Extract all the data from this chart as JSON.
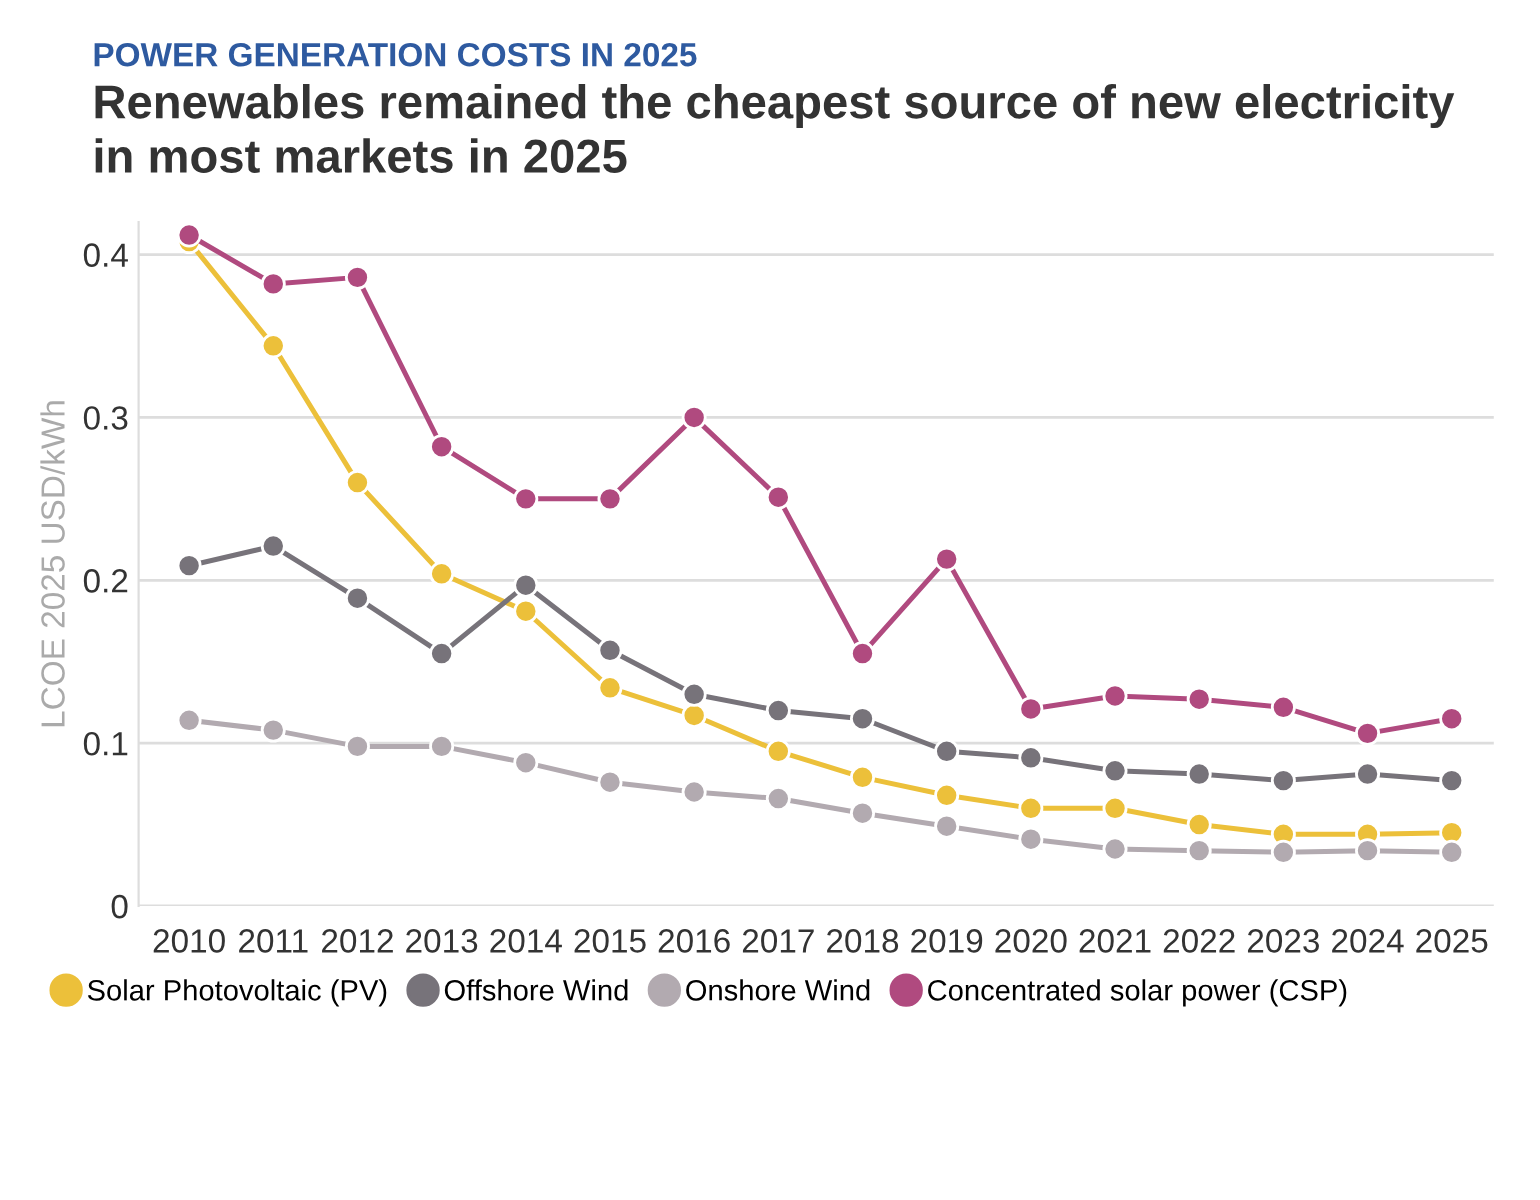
{
  "chart_data": {
    "type": "line",
    "subtitle": "POWER GENERATION COSTS IN 2025",
    "title": "Renewables remained the cheapest source of new electricity\nin most markets in 2025",
    "ylabel": "LCOE 2025 USD/kWh",
    "categories": [
      "2010",
      "2011",
      "2012",
      "2013",
      "2014",
      "2015",
      "2016",
      "2017",
      "2018",
      "2019",
      "2020",
      "2021",
      "2022",
      "2023",
      "2024",
      "2025"
    ],
    "series": [
      {
        "name": "Solar Photovoltaic (PV)",
        "color": "#ecc03a",
        "values": [
          0.408,
          0.344,
          0.26,
          0.204,
          0.181,
          0.134,
          0.117,
          0.095,
          0.079,
          0.068,
          0.06,
          0.06,
          0.05,
          0.044,
          0.044,
          0.045
        ]
      },
      {
        "name": "Offshore Wind",
        "color": "#77737a",
        "values": [
          0.209,
          0.221,
          0.189,
          0.155,
          0.197,
          0.157,
          0.13,
          0.12,
          0.115,
          0.095,
          0.091,
          0.083,
          0.081,
          0.077,
          0.081,
          0.077
        ]
      },
      {
        "name": "Onshore Wind",
        "color": "#b2aab0",
        "values": [
          0.114,
          0.108,
          0.098,
          0.098,
          0.088,
          0.076,
          0.07,
          0.066,
          0.057,
          0.049,
          0.041,
          0.035,
          0.034,
          0.033,
          0.034,
          0.033
        ]
      },
      {
        "name": "Concentrated solar power (CSP)",
        "color": "#b04a7f",
        "values": [
          0.412,
          0.382,
          0.386,
          0.282,
          0.25,
          0.25,
          0.3,
          0.251,
          0.155,
          0.213,
          0.121,
          0.129,
          0.127,
          0.122,
          0.106,
          0.115
        ]
      }
    ],
    "ylim": [
      0,
      0.42
    ],
    "yticks": [
      0,
      0.1,
      0.2,
      0.3,
      0.4
    ],
    "grid": "y",
    "legend": "bottom",
    "marker": "circle",
    "line_style": "solid"
  }
}
